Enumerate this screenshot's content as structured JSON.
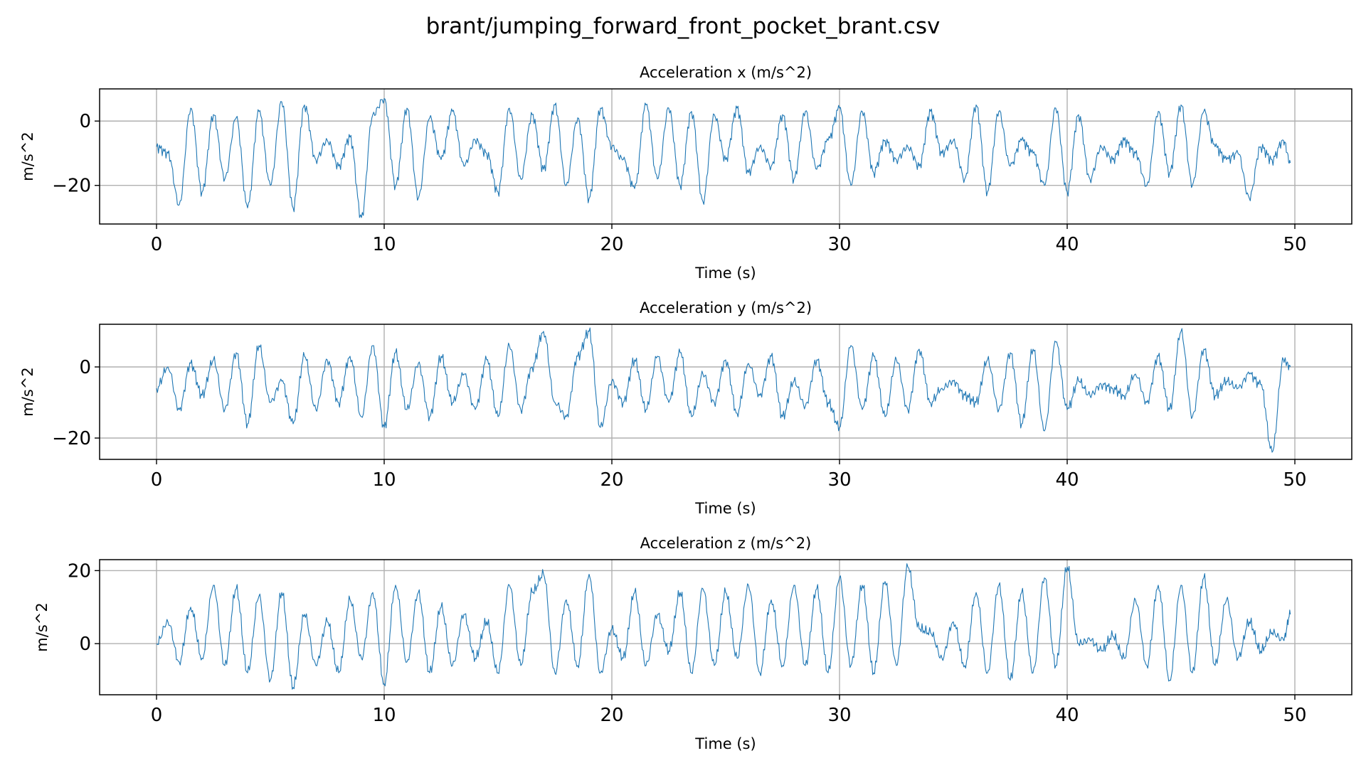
{
  "figure": {
    "title": "brant/jumping_forward_front_pocket_brant.csv"
  },
  "colors": {
    "line": "#1f77b4",
    "grid": "#b0b0b0",
    "axes": "#000000",
    "background": "#ffffff"
  },
  "chart_data": [
    {
      "type": "line",
      "title": "Acceleration x (m/s^2)",
      "xlabel": "Time (s)",
      "ylabel": "m/s^2",
      "xlim": [
        -2.5,
        52.5
      ],
      "ylim": [
        -32,
        10
      ],
      "xticks": [
        0,
        10,
        20,
        30,
        40,
        50
      ],
      "yticks": [
        -20,
        0
      ],
      "ytick_labels": [
        "−20",
        "0"
      ],
      "grid": true,
      "series": [
        {
          "x": [
            0,
            0.5,
            1,
            1.5,
            2,
            2.5,
            3,
            3.5,
            4,
            4.5,
            5,
            5.5,
            6,
            6.5,
            7,
            7.5,
            8,
            8.5,
            9,
            9.5,
            10,
            10.5,
            11,
            11.5,
            12,
            12.5,
            13,
            13.5,
            14,
            14.5,
            15,
            15.5,
            16,
            16.5,
            17,
            17.5,
            18,
            18.5,
            19,
            19.5,
            20,
            20.5,
            21,
            21.5,
            22,
            22.5,
            23,
            23.5,
            24,
            24.5,
            25,
            25.5,
            26,
            26.5,
            27,
            27.5,
            28,
            28.5,
            29,
            29.5,
            30,
            30.5,
            31,
            31.5,
            32,
            32.5,
            33,
            33.5,
            34,
            34.5,
            35,
            35.5,
            36,
            36.5,
            37,
            37.5,
            38,
            38.5,
            39,
            39.5,
            40,
            40.5,
            41,
            41.5,
            42,
            42.5,
            43,
            43.5,
            44,
            44.5,
            45,
            45.5,
            46,
            46.5,
            47,
            47.5,
            48,
            48.5,
            49,
            49.5,
            49.8
          ],
          "y": [
            -8,
            -10,
            -26,
            4,
            -22,
            2,
            -18,
            1,
            -27,
            3,
            -20,
            6,
            -27,
            5,
            -12,
            -6,
            -14,
            -5,
            -30,
            2,
            7,
            -20,
            4,
            -24,
            1,
            -12,
            3,
            -14,
            -6,
            -10,
            -22,
            4,
            -18,
            2,
            -15,
            5,
            -20,
            1,
            -24,
            4,
            -8,
            -12,
            -21,
            5,
            -18,
            4,
            -20,
            3,
            -25,
            2,
            -12,
            4,
            -16,
            -8,
            -14,
            2,
            -18,
            3,
            -15,
            -6,
            4,
            -20,
            3,
            -16,
            -6,
            -12,
            -8,
            -14,
            3,
            -10,
            -6,
            -18,
            5,
            -22,
            3,
            -14,
            -6,
            -10,
            -20,
            4,
            -22,
            2,
            -18,
            -8,
            -12,
            -6,
            -10,
            -20,
            3,
            -16,
            5,
            -20,
            3,
            -8,
            -12,
            -10,
            -24,
            -8,
            -12,
            -6,
            -13
          ]
        }
      ]
    },
    {
      "type": "line",
      "title": "Acceleration y (m/s^2)",
      "xlabel": "Time (s)",
      "ylabel": "m/s^2",
      "xlim": [
        -2.5,
        52.5
      ],
      "ylim": [
        -26,
        12
      ],
      "xticks": [
        0,
        10,
        20,
        30,
        40,
        50
      ],
      "yticks": [
        -20,
        0
      ],
      "ytick_labels": [
        "−20",
        "0"
      ],
      "grid": true,
      "series": [
        {
          "x": [
            0,
            0.5,
            1,
            1.5,
            2,
            2.5,
            3,
            3.5,
            4,
            4.5,
            5,
            5.5,
            6,
            6.5,
            7,
            7.5,
            8,
            8.5,
            9,
            9.5,
            10,
            10.5,
            11,
            11.5,
            12,
            12.5,
            13,
            13.5,
            14,
            14.5,
            15,
            15.5,
            16,
            16.5,
            17,
            17.5,
            18,
            18.5,
            19,
            19.5,
            20,
            20.5,
            21,
            21.5,
            22,
            22.5,
            23,
            23.5,
            24,
            24.5,
            25,
            25.5,
            26,
            26.5,
            27,
            27.5,
            28,
            28.5,
            29,
            29.5,
            30,
            30.5,
            31,
            31.5,
            32,
            32.5,
            33,
            33.5,
            34,
            34.5,
            35,
            35.5,
            36,
            36.5,
            37,
            37.5,
            38,
            38.5,
            39,
            39.5,
            40,
            40.5,
            41,
            41.5,
            42,
            42.5,
            43,
            43.5,
            44,
            44.5,
            45,
            45.5,
            46,
            46.5,
            47,
            47.5,
            48,
            48.5,
            49,
            49.5,
            49.8
          ],
          "y": [
            -6,
            0,
            -12,
            1,
            -8,
            2,
            -12,
            4,
            -16,
            6,
            -10,
            -4,
            -16,
            3,
            -12,
            2,
            -10,
            3,
            -14,
            6,
            -17,
            4,
            -12,
            1,
            -14,
            3,
            -10,
            -2,
            -12,
            2,
            -14,
            6,
            -12,
            0,
            10,
            -10,
            -14,
            3,
            10,
            -17,
            -4,
            -10,
            2,
            -12,
            3,
            -10,
            4,
            -14,
            -2,
            -10,
            2,
            -13,
            1,
            -8,
            3,
            -14,
            -4,
            -11,
            2,
            -10,
            -17,
            6,
            -12,
            3,
            -14,
            2,
            -12,
            5,
            -10,
            -6,
            -4,
            -8,
            -10,
            2,
            -12,
            4,
            -16,
            5,
            -18,
            7,
            -12,
            -4,
            -8,
            -5,
            -6,
            -8,
            -2,
            -10,
            3,
            -12,
            10,
            -14,
            5,
            -8,
            -4,
            -6,
            -2,
            -5,
            -24,
            2,
            0
          ]
        }
      ]
    },
    {
      "type": "line",
      "title": "Acceleration z (m/s^2)",
      "xlabel": "Time (s)",
      "ylabel": "m/s^2",
      "xlim": [
        -2.5,
        52.5
      ],
      "ylim": [
        -14,
        23
      ],
      "xticks": [
        0,
        10,
        20,
        30,
        40,
        50
      ],
      "yticks": [
        0,
        20
      ],
      "ytick_labels": [
        "0",
        "20"
      ],
      "grid": true,
      "series": [
        {
          "x": [
            0,
            0.5,
            1,
            1.5,
            2,
            2.5,
            3,
            3.5,
            4,
            4.5,
            5,
            5.5,
            6,
            6.5,
            7,
            7.5,
            8,
            8.5,
            9,
            9.5,
            10,
            10.5,
            11,
            11.5,
            12,
            12.5,
            13,
            13.5,
            14,
            14.5,
            15,
            15.5,
            16,
            16.5,
            17,
            17.5,
            18,
            18.5,
            19,
            19.5,
            20,
            20.5,
            21,
            21.5,
            22,
            22.5,
            23,
            23.5,
            24,
            24.5,
            25,
            25.5,
            26,
            26.5,
            27,
            27.5,
            28,
            28.5,
            29,
            29.5,
            30,
            30.5,
            31,
            31.5,
            32,
            32.5,
            33,
            33.5,
            34,
            34.5,
            35,
            35.5,
            36,
            36.5,
            37,
            37.5,
            38,
            38.5,
            39,
            39.5,
            40,
            40.5,
            41,
            41.5,
            42,
            42.5,
            43,
            43.5,
            44,
            44.5,
            45,
            45.5,
            46,
            46.5,
            47,
            47.5,
            48,
            48.5,
            49,
            49.5,
            49.8
          ],
          "y": [
            0,
            6,
            -5,
            10,
            -4,
            16,
            -6,
            15,
            -8,
            13,
            -10,
            14,
            -12,
            8,
            -6,
            6,
            -8,
            12,
            -4,
            14,
            -11,
            16,
            -5,
            14,
            -8,
            10,
            -6,
            8,
            -4,
            6,
            -8,
            16,
            -6,
            14,
            19,
            -8,
            12,
            -6,
            19,
            -8,
            4,
            -4,
            14,
            -6,
            8,
            -2,
            14,
            -8,
            15,
            -6,
            14,
            -4,
            16,
            -8,
            12,
            -6,
            16,
            -6,
            15,
            -8,
            18,
            -6,
            16,
            -8,
            17,
            -6,
            21,
            4,
            3,
            -4,
            6,
            -6,
            14,
            -8,
            16,
            -10,
            14,
            -8,
            18,
            -6,
            21,
            0,
            1,
            -2,
            2,
            -4,
            12,
            -6,
            16,
            -10,
            16,
            -8,
            18,
            -6,
            12,
            -4,
            6,
            -2,
            3,
            1,
            8
          ]
        }
      ]
    }
  ]
}
